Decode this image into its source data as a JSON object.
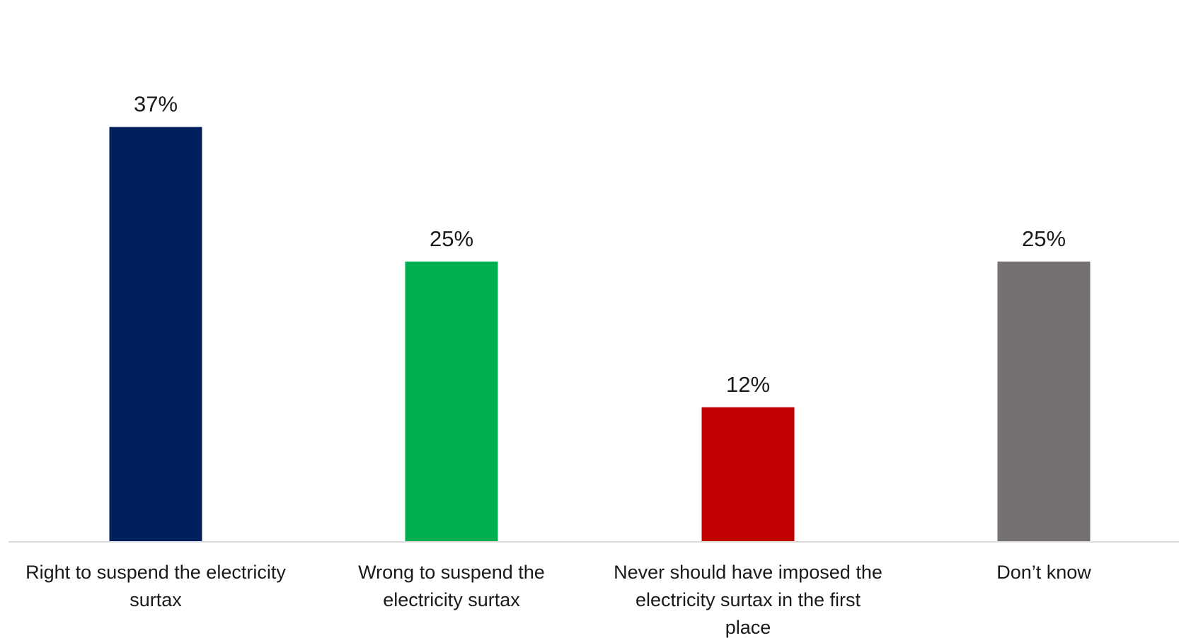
{
  "chart_data": {
    "type": "bar",
    "title": "",
    "xlabel": "",
    "ylabel": "",
    "ylim": [
      0,
      40
    ],
    "grid": false,
    "legend": "none",
    "categories": [
      [
        "Right to suspend the electricity",
        "surtax"
      ],
      [
        "Wrong to suspend the",
        "electricity surtax"
      ],
      [
        "Never should have imposed the",
        "electricity surtax in the first",
        "place"
      ],
      [
        "Don’t know"
      ]
    ],
    "values": [
      37,
      25,
      12,
      25
    ],
    "value_labels": [
      "37%",
      "25%",
      "12%",
      "25%"
    ],
    "colors": [
      "#00205B",
      "#00B050",
      "#C00000",
      "#767171"
    ]
  }
}
